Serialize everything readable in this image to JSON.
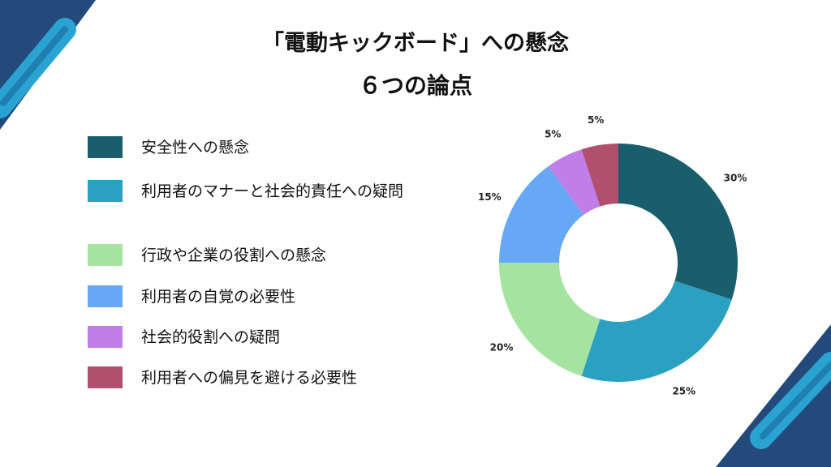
{
  "title": {
    "line1": "「電動キックボード」への懸念",
    "line2": "６つの論点"
  },
  "theme": {
    "decor_dark": "#234a7a",
    "decor_light": "#2aa3d3"
  },
  "chart_data": {
    "type": "pie",
    "donut": true,
    "categories": [
      "安全性への懸念",
      "利用者のマナーと社会的責任への疑問",
      "行政や企業の役割への懸念",
      "利用者の自覚の必要性",
      "社会的役割への疑問",
      "利用者への偏見を避ける必要性"
    ],
    "values": [
      30,
      25,
      20,
      15,
      5,
      5
    ],
    "labels": [
      "30%",
      "25%",
      "20%",
      "15%",
      "5%",
      "5%"
    ],
    "colors": [
      "#1a5e6e",
      "#2ba1c1",
      "#a5e3a0",
      "#66a8f5",
      "#c07ee8",
      "#b04f6e"
    ],
    "legend_position": "left"
  }
}
